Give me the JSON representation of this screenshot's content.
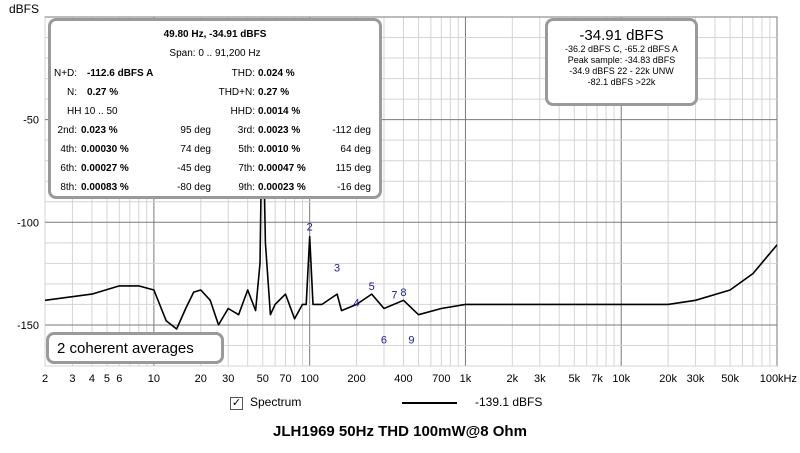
{
  "chart_data": {
    "type": "line",
    "ylabel": "dBFS",
    "xlabel": "",
    "x_scale": "log",
    "xlim": [
      2,
      100000
    ],
    "ylim": [
      -170,
      0
    ],
    "grid": true,
    "x_ticks": [
      {
        "value": 2,
        "label": "2"
      },
      {
        "value": 3,
        "label": "3"
      },
      {
        "value": 4,
        "label": "4"
      },
      {
        "value": 5,
        "label": "5"
      },
      {
        "value": 6,
        "label": "6"
      },
      {
        "value": 10,
        "label": "10"
      },
      {
        "value": 20,
        "label": "20"
      },
      {
        "value": 30,
        "label": "30"
      },
      {
        "value": 50,
        "label": "50"
      },
      {
        "value": 70,
        "label": "70"
      },
      {
        "value": 100,
        "label": "100"
      },
      {
        "value": 200,
        "label": "200"
      },
      {
        "value": 400,
        "label": "400"
      },
      {
        "value": 700,
        "label": "700"
      },
      {
        "value": 1000,
        "label": "1k"
      },
      {
        "value": 2000,
        "label": "2k"
      },
      {
        "value": 3000,
        "label": "3k"
      },
      {
        "value": 5000,
        "label": "5k"
      },
      {
        "value": 7000,
        "label": "7k"
      },
      {
        "value": 10000,
        "label": "10k"
      },
      {
        "value": 20000,
        "label": "20k"
      },
      {
        "value": 30000,
        "label": "30k"
      },
      {
        "value": 50000,
        "label": "50k"
      },
      {
        "value": 100000,
        "label": "100kHz"
      }
    ],
    "y_ticks": [
      {
        "value": -50,
        "label": "-50"
      },
      {
        "value": -100,
        "label": "-100"
      },
      {
        "value": -150,
        "label": "-150"
      }
    ],
    "series": [
      {
        "name": "Spectrum",
        "color": "#000000",
        "x": [
          2,
          4,
          6,
          8,
          10,
          12,
          14,
          16,
          18,
          20,
          23,
          26,
          30,
          35,
          40,
          45,
          48,
          49.8,
          52,
          56,
          60,
          70,
          80,
          90,
          95,
          100,
          105,
          120,
          150,
          160,
          200,
          250,
          300,
          400,
          500,
          700,
          1000,
          2000,
          5000,
          10000,
          20000,
          30000,
          50000,
          70000,
          100000
        ],
        "y": [
          -138,
          -135,
          -131,
          -131,
          -133,
          -148,
          -152,
          -142,
          -134,
          -133,
          -138,
          -150,
          -142,
          -145,
          -133,
          -143,
          -120,
          -34.91,
          -110,
          -145,
          -140,
          -135,
          -147,
          -140,
          -140,
          -107,
          -140,
          -140,
          -135,
          -143,
          -140,
          -135,
          -142,
          -138,
          -145,
          -142,
          -140,
          -140,
          -140,
          -140,
          -140,
          -138,
          -133,
          -125,
          -111
        ]
      }
    ],
    "harmonic_markers": [
      {
        "label": "2",
        "x": 100,
        "y": -104
      },
      {
        "label": "3",
        "x": 150,
        "y": -124
      },
      {
        "label": "4",
        "x": 200,
        "y": -141
      },
      {
        "label": "5",
        "x": 250,
        "y": -133
      },
      {
        "label": "6",
        "x": 300,
        "y": -159
      },
      {
        "label": "7",
        "x": 350,
        "y": -137
      },
      {
        "label": "8",
        "x": 400,
        "y": -136
      },
      {
        "label": "9",
        "x": 450,
        "y": -159
      }
    ],
    "legend": {
      "placement": "bottom",
      "series_label": "Spectrum",
      "value_label": "-139.1 dBFS",
      "checked": true
    }
  },
  "stats": {
    "header1": "49.80 Hz, -34.91 dBFS",
    "span": "Span: 0 .. 91,200 Hz",
    "nd_label": "N+D:",
    "nd_value": "-112.6 dBFS A",
    "thd_label": "THD:",
    "thd_value": "0.024 %",
    "n_label": "N:",
    "n_value": "0.27 %",
    "thdn_label": "THD+N:",
    "thdn_value": "0.27 %",
    "hh_label": "HH 10 .. 50",
    "hhd_label": "HHD:",
    "hhd_value": "0.0014 %",
    "harmonics": [
      {
        "label": "2nd:",
        "value": "0.023 %",
        "phase": "95 deg"
      },
      {
        "label": "3rd:",
        "value": "0.0023 %",
        "phase": "-112 deg"
      },
      {
        "label": "4th:",
        "value": "0.00030 %",
        "phase": "74 deg"
      },
      {
        "label": "5th:",
        "value": "0.0010 %",
        "phase": "64 deg"
      },
      {
        "label": "6th:",
        "value": "0.00027 %",
        "phase": "-45 deg"
      },
      {
        "label": "7th:",
        "value": "0.00047 %",
        "phase": "115 deg"
      },
      {
        "label": "8th:",
        "value": "0.00083 %",
        "phase": "-80 deg"
      },
      {
        "label": "9th:",
        "value": "0.00023 %",
        "phase": "-16 deg"
      }
    ]
  },
  "summary": {
    "big": "-34.91 dBFS",
    "lines": [
      "-36.2 dBFS C, -65.2 dBFS A",
      "Peak sample: -34.83 dBFS",
      "-34.9 dBFS 22 - 22k UNW",
      "-82.1 dBFS >22k"
    ]
  },
  "averages": "2 coherent averages",
  "caption": "JLH1969 50Hz THD 100mW@8 Ohm",
  "colors": {
    "grid_major": "#7a7a7a",
    "grid_minor": "#d4d4d4",
    "panel_border": "#9a9a9a",
    "marker_text": "#1a1a9a"
  }
}
